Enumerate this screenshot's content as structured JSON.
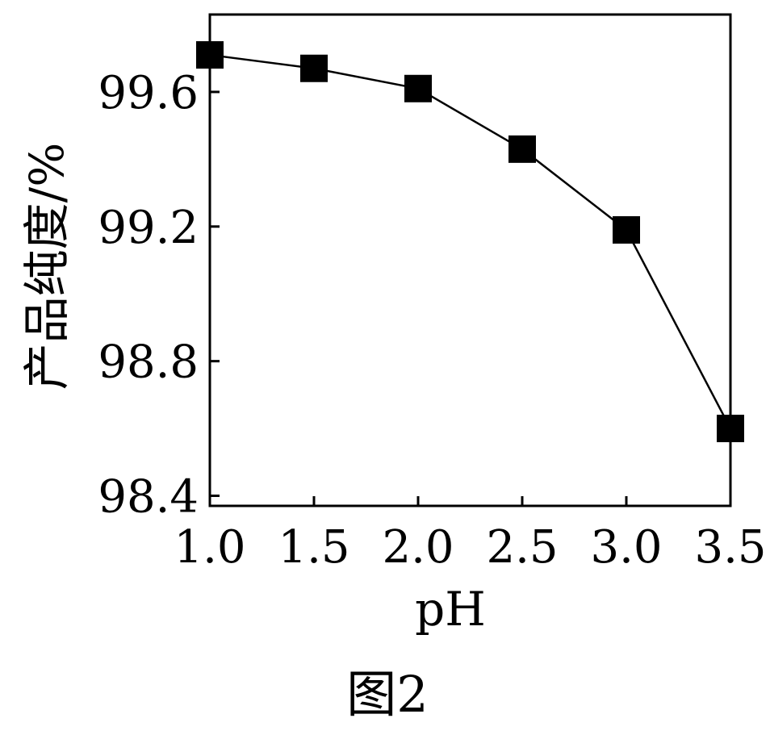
{
  "chart_data": {
    "type": "line",
    "caption": "图2",
    "xlabel": "pH",
    "ylabel": "产品纯度/%",
    "x": [
      1.0,
      1.5,
      2.0,
      2.5,
      3.0,
      3.5
    ],
    "series": [
      {
        "values": [
          99.71,
          99.67,
          99.61,
          99.43,
          99.19,
          98.6
        ]
      }
    ],
    "xlim": [
      1.0,
      3.5
    ],
    "ylim": [
      98.37,
      99.83
    ],
    "xticks": [
      1.0,
      1.5,
      2.0,
      2.5,
      3.0,
      3.5
    ],
    "xtick_labels": [
      "1.0",
      "1.5",
      "2.0",
      "2.5",
      "3.0",
      "3.5"
    ],
    "yticks": [
      98.4,
      98.8,
      99.2,
      99.6
    ],
    "ytick_labels": [
      "98.4",
      "98.8",
      "99.2",
      "99.6"
    ],
    "marker": "square",
    "line_color": "#000000",
    "marker_color": "#000000",
    "grid": false,
    "legend": "none"
  }
}
